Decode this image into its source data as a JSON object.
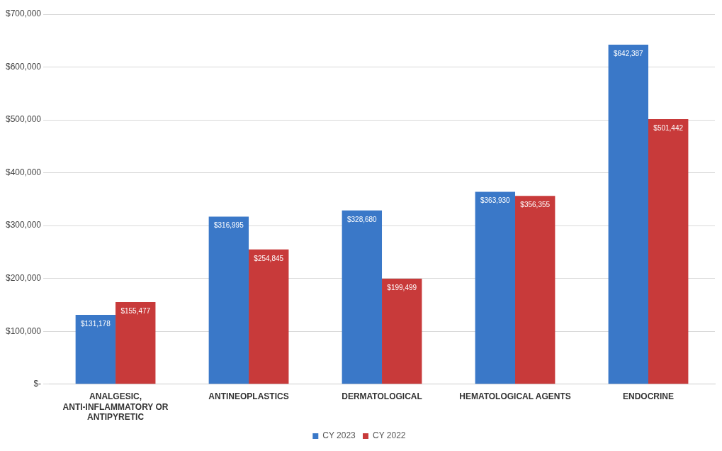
{
  "chart_data": {
    "type": "bar",
    "categories": [
      "ANALGESIC, ANTI-INFLAMMATORY OR ANTIPYRETIC",
      "ANTINEOPLASTICS",
      "DERMATOLOGICAL",
      "HEMATOLOGICAL AGENTS",
      "ENDOCRINE"
    ],
    "series": [
      {
        "name": "CY 2023",
        "color": "#3a78c8",
        "values": [
          131178,
          316995,
          328680,
          363930,
          642387
        ],
        "value_labels": [
          "$131,178",
          "$316,995",
          "$328,680",
          "$363,930",
          "$642,387"
        ]
      },
      {
        "name": "CY 2022",
        "color": "#c83a3a",
        "values": [
          155477,
          254845,
          199499,
          356355,
          501442
        ],
        "value_labels": [
          "$155,477",
          "$254,845",
          "$199,499",
          "$356,355",
          "$501,442"
        ]
      }
    ],
    "ylim": [
      0,
      700000
    ],
    "yticks": [
      {
        "value": 0,
        "label": "$-"
      },
      {
        "value": 100000,
        "label": "$100,000"
      },
      {
        "value": 200000,
        "label": "$200,000"
      },
      {
        "value": 300000,
        "label": "$300,000"
      },
      {
        "value": 400000,
        "label": "$400,000"
      },
      {
        "value": 500000,
        "label": "$500,000"
      },
      {
        "value": 600000,
        "label": "$600,000"
      },
      {
        "value": 700000,
        "label": "$700,000"
      }
    ],
    "grid": "y",
    "legend": "bottom"
  }
}
